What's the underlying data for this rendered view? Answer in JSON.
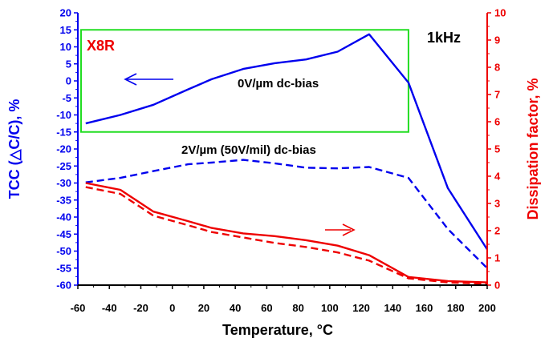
{
  "chart_data": {
    "type": "line",
    "xlabel": "Temperature, °C",
    "ylabel_left": "TCC (△C/C), %",
    "ylabel_right": "Dissipation factor, %",
    "xlim": [
      -60,
      200
    ],
    "ylim_left": [
      -60,
      20
    ],
    "ylim_right": [
      0,
      10
    ],
    "x_ticks": [
      -60,
      -40,
      -20,
      0,
      20,
      40,
      60,
      80,
      100,
      120,
      140,
      160,
      180,
      200
    ],
    "y_left_ticks": [
      20,
      15,
      10,
      5,
      0,
      -5,
      -10,
      -15,
      -20,
      -25,
      -30,
      -35,
      -40,
      -45,
      -50,
      -55,
      -60
    ],
    "y_right_ticks": [
      10,
      9,
      8,
      7,
      6,
      5,
      4,
      3,
      2,
      1,
      0
    ],
    "grid": false,
    "series": [
      {
        "axis": "left",
        "color": "#0000ee",
        "dash": "solid",
        "x": [
          -55,
          -33,
          -12,
          10,
          25,
          45,
          65,
          85,
          105,
          125,
          150,
          175,
          200
        ],
        "y": [
          -12.5,
          -10,
          -7,
          -2.5,
          0.5,
          3.5,
          5.2,
          6.3,
          8.6,
          13.7,
          -0.5,
          -31.5,
          -49.5
        ]
      },
      {
        "axis": "left",
        "color": "#0000ee",
        "dash": "dashed",
        "x": [
          -55,
          -33,
          -12,
          10,
          25,
          45,
          65,
          85,
          105,
          125,
          150,
          175,
          200
        ],
        "y": [
          -29.8,
          -28.5,
          -26.5,
          -24.5,
          -24,
          -23.2,
          -24.2,
          -25.5,
          -25.7,
          -25.3,
          -28.5,
          -43.5,
          -55
        ]
      },
      {
        "axis": "right",
        "color": "#ee0000",
        "dash": "solid",
        "x": [
          -55,
          -33,
          -12,
          10,
          25,
          45,
          65,
          85,
          105,
          125,
          150,
          175,
          200
        ],
        "y": [
          3.75,
          3.5,
          2.7,
          2.35,
          2.1,
          1.9,
          1.8,
          1.65,
          1.45,
          1.1,
          0.3,
          0.15,
          0.1
        ]
      },
      {
        "axis": "right",
        "color": "#ee0000",
        "dash": "dashed",
        "x": [
          -55,
          -33,
          -12,
          10,
          25,
          45,
          65,
          85,
          105,
          125,
          150,
          175,
          200
        ],
        "y": [
          3.6,
          3.35,
          2.55,
          2.2,
          1.95,
          1.75,
          1.55,
          1.4,
          1.2,
          0.9,
          0.25,
          0.1,
          0.05
        ]
      }
    ],
    "annotations": {
      "x8r": "X8R",
      "freq": "1kHz",
      "bias0": "0V/µm dc-bias",
      "bias2": "2V/µm (50V/mil) dc-bias"
    },
    "x8r_box": {
      "x_min": -60,
      "x_max": 150,
      "y_min": -15,
      "y_max": 15,
      "color": "#22dd22"
    }
  }
}
